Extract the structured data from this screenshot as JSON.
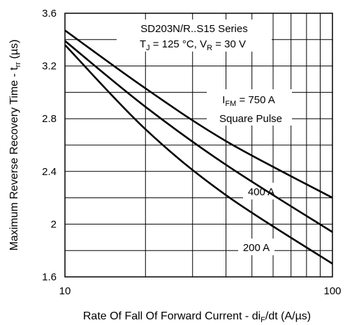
{
  "chart_data": {
    "type": "line",
    "title": "",
    "xlabel": "Rate Of Fall Of Forward Current - di_F/dt (A/µs)",
    "ylabel": "Maximum Reverse Recovery Time - t_rr (µs)",
    "x_scale": "log",
    "xlim": [
      10,
      100
    ],
    "ylim": [
      1.6,
      3.6
    ],
    "x_ticks": [
      "10",
      "100"
    ],
    "y_ticks": [
      "1.6",
      "2",
      "2.4",
      "2.8",
      "3.2",
      "3.6"
    ],
    "grid": true,
    "annotations": {
      "series_title": "SD203N/R..S15 Series",
      "conditions": "T_J = 125 °C, V_R = 30 V",
      "ifm_label": "I_FM = 750 A",
      "pulse_label": "Square Pulse"
    },
    "series": [
      {
        "name": "750 A",
        "x": [
          10,
          20,
          40,
          100
        ],
        "y": [
          3.47,
          3.03,
          2.63,
          2.2
        ]
      },
      {
        "name": "400 A",
        "x": [
          10,
          20,
          40,
          100
        ],
        "y": [
          3.39,
          2.89,
          2.45,
          1.94
        ]
      },
      {
        "name": "200 A",
        "x": [
          10,
          20,
          40,
          100
        ],
        "y": [
          3.36,
          2.72,
          2.22,
          1.7
        ]
      }
    ]
  }
}
